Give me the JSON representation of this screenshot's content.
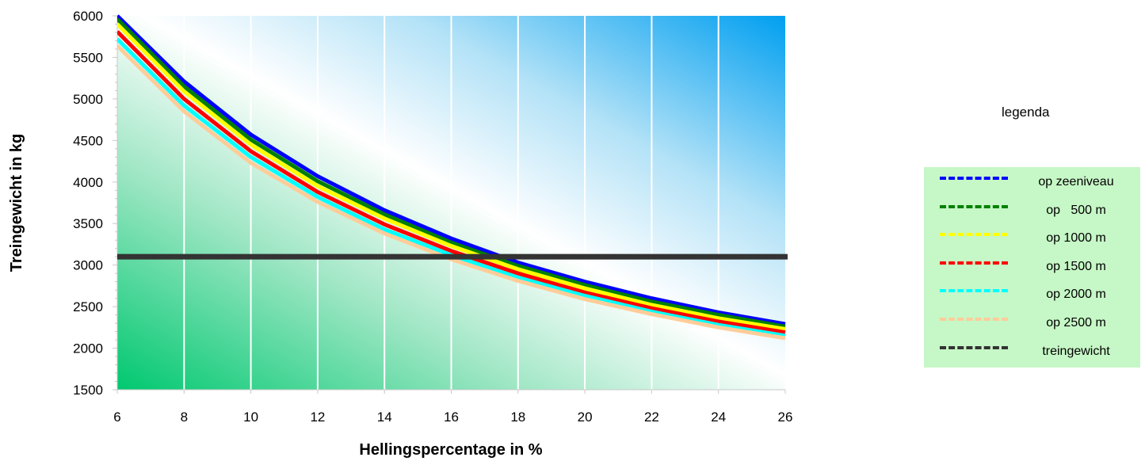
{
  "chart_data": {
    "type": "line",
    "xlabel": "Hellingspercentage in %",
    "ylabel": "Treingewicht in kg",
    "xlim": [
      6,
      26
    ],
    "ylim": [
      1500,
      6000
    ],
    "xticks": [
      "6",
      "8",
      "10",
      "12",
      "14",
      "16",
      "18",
      "20",
      "22",
      "24",
      "26"
    ],
    "yticks": [
      "1500",
      "2000",
      "2500",
      "3000",
      "3500",
      "4000",
      "4500",
      "5000",
      "5500",
      "6000"
    ],
    "grid": "vertical",
    "x": [
      6,
      8,
      10,
      12,
      14,
      16,
      18,
      20,
      22,
      24,
      26
    ],
    "series": [
      {
        "name": "op zeeniveau",
        "color": "#0000ff",
        "values": [
          6000,
          5210,
          4570,
          4070,
          3660,
          3320,
          3030,
          2800,
          2600,
          2430,
          2290
        ]
      },
      {
        "name": "op   500 m",
        "color": "#008000",
        "values": [
          5960,
          5150,
          4510,
          4010,
          3610,
          3270,
          2990,
          2760,
          2560,
          2400,
          2260
        ]
      },
      {
        "name": "op 1000 m",
        "color": "#ffff00",
        "values": [
          5900,
          5090,
          4450,
          3950,
          3560,
          3230,
          2950,
          2720,
          2520,
          2360,
          2230
        ]
      },
      {
        "name": "op 1500 m",
        "color": "#ff0000",
        "values": [
          5810,
          5000,
          4370,
          3880,
          3490,
          3170,
          2900,
          2670,
          2480,
          2320,
          2190
        ]
      },
      {
        "name": "op 2000 m",
        "color": "#00ffff",
        "values": [
          5720,
          4920,
          4300,
          3820,
          3430,
          3120,
          2850,
          2630,
          2440,
          2280,
          2150
        ]
      },
      {
        "name": "op 2500 m",
        "color": "#ffcc99",
        "values": [
          5640,
          4850,
          4230,
          3760,
          3380,
          3070,
          2810,
          2590,
          2410,
          2250,
          2120
        ]
      },
      {
        "name": "treingewicht",
        "color": "#333333",
        "values": [
          3100,
          3100,
          3100,
          3100,
          3100,
          3100,
          3100,
          3100,
          3100,
          3100,
          3100
        ]
      }
    ],
    "legend": {
      "title": "legenda",
      "placement": "right"
    }
  }
}
